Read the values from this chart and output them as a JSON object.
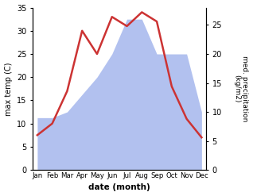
{
  "months": [
    "Jan",
    "Feb",
    "Mar",
    "Apr",
    "May",
    "Jun",
    "Jul",
    "Aug",
    "Sep",
    "Oct",
    "Nov",
    "Dec"
  ],
  "temp": [
    7.5,
    10.0,
    17.0,
    30.0,
    25.0,
    33.0,
    31.0,
    34.0,
    32.0,
    18.0,
    11.0,
    7.0
  ],
  "precip": [
    9,
    9,
    10,
    13,
    16,
    20,
    26,
    26,
    20,
    20,
    20,
    10
  ],
  "temp_color": "#cc3333",
  "precip_color": "#aabbee",
  "xlabel": "date (month)",
  "ylabel_left": "max temp (C)",
  "ylabel_right": "med. precipitation\n(kg/m2)",
  "ylim_left": [
    0,
    35
  ],
  "ylim_right": [
    0,
    28
  ],
  "yticks_left": [
    0,
    5,
    10,
    15,
    20,
    25,
    30,
    35
  ],
  "yticks_right": [
    0,
    5,
    10,
    15,
    20,
    25
  ],
  "bg_color": "#ffffff"
}
